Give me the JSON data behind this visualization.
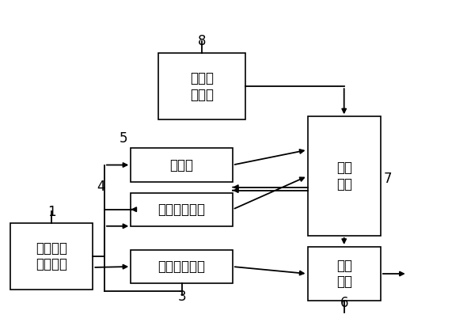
{
  "boxes": {
    "discharge_detect": [
      0.338,
      0.63,
      0.188,
      0.21
    ],
    "counter": [
      0.278,
      0.435,
      0.22,
      0.105
    ],
    "delay2": [
      0.278,
      0.295,
      0.22,
      0.105
    ],
    "delay1": [
      0.278,
      0.115,
      0.22,
      0.105
    ],
    "overvoltage": [
      0.018,
      0.095,
      0.178,
      0.21
    ],
    "latch": [
      0.66,
      0.265,
      0.158,
      0.375
    ],
    "logic": [
      0.66,
      0.06,
      0.158,
      0.17
    ]
  },
  "labels": {
    "discharge_detect": "放电检\n测电路",
    "counter": "计数器",
    "delay2": "第二延时电路",
    "delay1": "第一延时电路",
    "overvoltage": "过充电压\n判断电路",
    "latch": "锁存\n电路",
    "logic": "逻辑\n电路"
  },
  "nums": {
    "discharge_detect": [
      "8",
      0.432,
      0.855,
      "center",
      "bottom"
    ],
    "counter": [
      "5",
      0.272,
      0.548,
      "right",
      "bottom"
    ],
    "delay2": [
      "4",
      0.222,
      0.42,
      "right",
      "center"
    ],
    "delay1": [
      "3",
      0.388,
      0.05,
      "center",
      "bottom"
    ],
    "overvoltage": [
      "1",
      0.107,
      0.318,
      "center",
      "bottom"
    ],
    "latch": [
      "7",
      0.825,
      0.445,
      "left",
      "center"
    ],
    "logic": [
      "6",
      0.739,
      0.03,
      "center",
      "bottom"
    ]
  },
  "bg_color": "#ffffff",
  "lw": 1.3,
  "ms": 9,
  "fs": 12
}
